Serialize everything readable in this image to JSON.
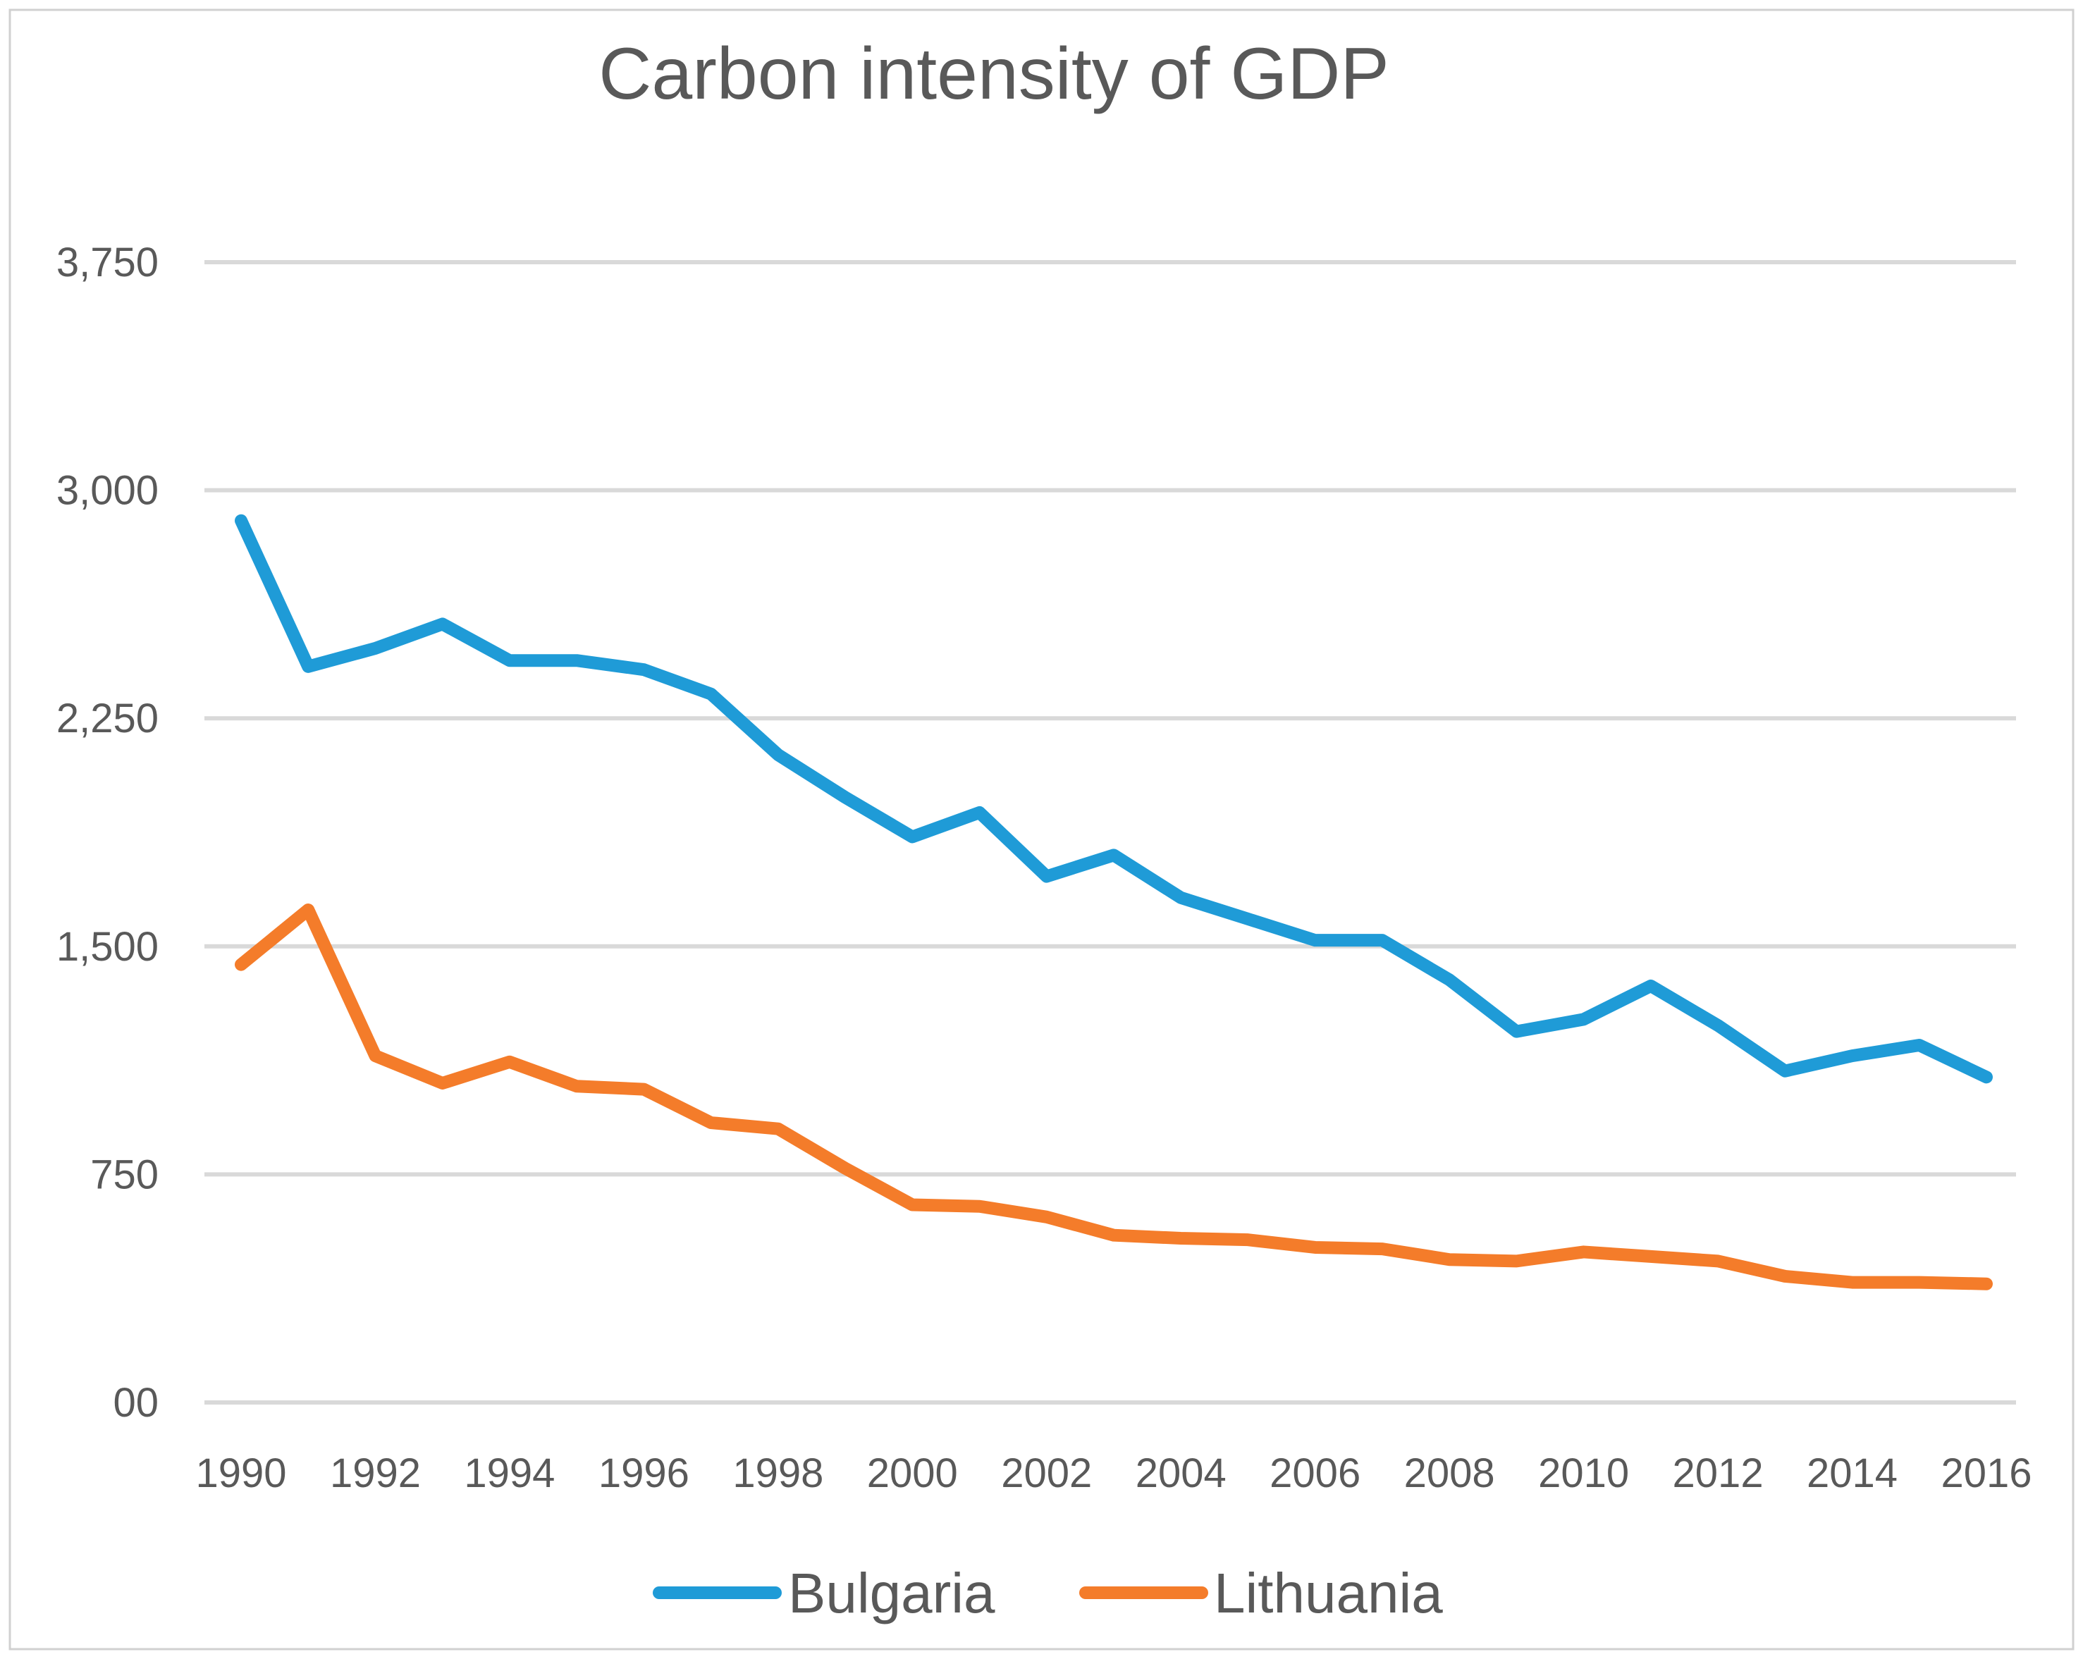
{
  "chart_data": {
    "type": "line",
    "title": "Carbon intensity of GDP",
    "xlabel": "",
    "ylabel": "",
    "x": [
      1990,
      1991,
      1992,
      1993,
      1994,
      1995,
      1996,
      1997,
      1998,
      1999,
      2000,
      2001,
      2002,
      2003,
      2004,
      2005,
      2006,
      2007,
      2008,
      2009,
      2010,
      2011,
      2012,
      2013,
      2014,
      2015,
      2016
    ],
    "x_tick_labels": [
      "1990",
      "1992",
      "1994",
      "1996",
      "1998",
      "2000",
      "2002",
      "2004",
      "2006",
      "2008",
      "2010",
      "2012",
      "2014",
      "2016"
    ],
    "y_tick_values": [
      0,
      750,
      1500,
      2250,
      3000,
      3750
    ],
    "y_tick_labels": [
      "00",
      "750",
      "1,500",
      "2,250",
      "3,000",
      "3,750"
    ],
    "ylim": [
      0,
      3750
    ],
    "xlim": [
      1990,
      2016
    ],
    "grid": true,
    "legend_position": "bottom",
    "series": [
      {
        "name": "Bulgaria",
        "color": "#1f9bd7",
        "values": [
          2900,
          2420,
          2480,
          2560,
          2440,
          2440,
          2410,
          2330,
          2130,
          1990,
          1860,
          1940,
          1730,
          1800,
          1660,
          1590,
          1520,
          1520,
          1390,
          1220,
          1260,
          1370,
          1240,
          1090,
          1140,
          1175,
          1070
        ]
      },
      {
        "name": "Lithuania",
        "color": "#f47c2a",
        "values": [
          1440,
          1620,
          1140,
          1050,
          1120,
          1040,
          1030,
          920,
          900,
          770,
          650,
          645,
          610,
          550,
          540,
          535,
          510,
          505,
          470,
          465,
          495,
          480,
          465,
          415,
          395,
          395,
          390
        ]
      }
    ]
  }
}
